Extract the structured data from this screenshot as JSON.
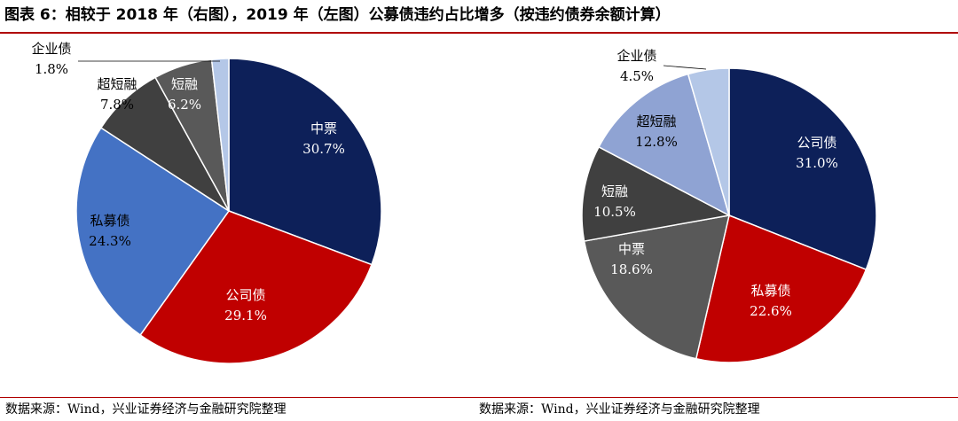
{
  "figure": {
    "title": "图表 6：相较于 2018 年（右图），2019 年（左图）公募债违约占比增多（按违约债券余额计算）",
    "sources": [
      "数据来源：Wind，兴业证券经济与金融研究院整理",
      "数据来源：Wind，兴业证券经济与金融研究院整理"
    ]
  },
  "chart_data": [
    {
      "type": "pie",
      "title": "",
      "slices": [
        {
          "name": "中票",
          "value": 30.7,
          "value_label": "30.7%",
          "color": "#0d2059",
          "label_color": "#ffffff"
        },
        {
          "name": "公司债",
          "value": 29.1,
          "value_label": "29.1%",
          "color": "#c00000",
          "label_color": "#ffffff"
        },
        {
          "name": "私募债",
          "value": 24.3,
          "value_label": "24.3%",
          "color": "#4472c4",
          "label_color": "#000000"
        },
        {
          "name": "超短融",
          "value": 7.8,
          "value_label": "7.8%",
          "color": "#404040",
          "label_color": "#000000"
        },
        {
          "name": "短融",
          "value": 6.2,
          "value_label": "6.2%",
          "color": "#595959",
          "label_color": "#ffffff"
        },
        {
          "name": "企业债",
          "value": 1.8,
          "value_label": "1.8%",
          "color": "#b4c7e7",
          "label_color": "#000000"
        }
      ]
    },
    {
      "type": "pie",
      "title": "",
      "slices": [
        {
          "name": "公司债",
          "value": 31.0,
          "value_label": "31.0%",
          "color": "#0d2059",
          "label_color": "#ffffff"
        },
        {
          "name": "私募债",
          "value": 22.6,
          "value_label": "22.6%",
          "color": "#c00000",
          "label_color": "#ffffff"
        },
        {
          "name": "中票",
          "value": 18.6,
          "value_label": "18.6%",
          "color": "#595959",
          "label_color": "#ffffff"
        },
        {
          "name": "短融",
          "value": 10.5,
          "value_label": "10.5%",
          "color": "#404040",
          "label_color": "#ffffff"
        },
        {
          "name": "超短融",
          "value": 12.8,
          "value_label": "12.8%",
          "color": "#8fa3d3",
          "label_color": "#000000"
        },
        {
          "name": "企业债",
          "value": 4.5,
          "value_label": "4.5%",
          "color": "#b4c7e7",
          "label_color": "#000000"
        }
      ]
    }
  ]
}
